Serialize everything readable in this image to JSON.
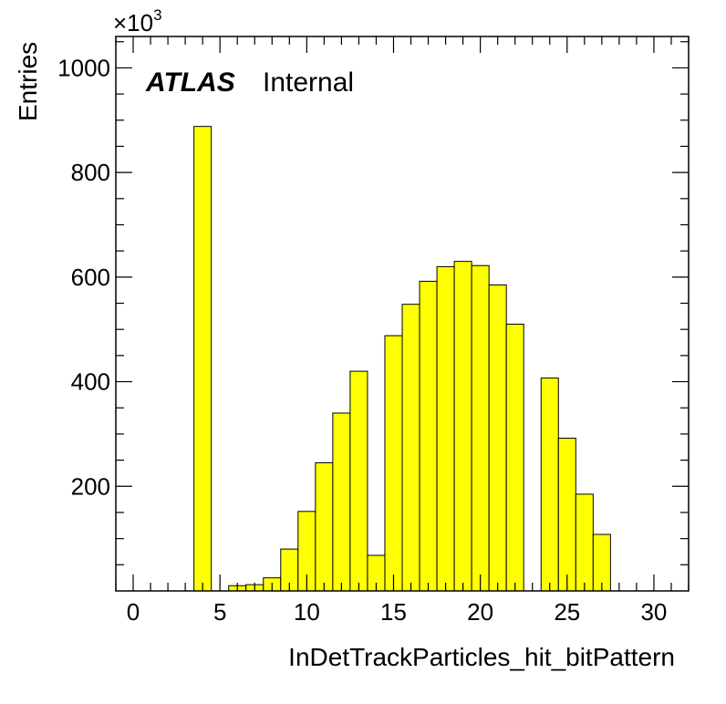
{
  "chart_data": {
    "type": "bar",
    "xlabel": "InDetTrackParticles_hit_bitPattern",
    "ylabel": "Entries",
    "y_multiplier": {
      "base": "×10",
      "exponent": "3"
    },
    "xlim": [
      -1,
      32
    ],
    "ylim": [
      0,
      1060
    ],
    "bin_width": 1,
    "x_ticks": [
      0,
      5,
      10,
      15,
      20,
      25,
      30
    ],
    "x_tick_labels": [
      "0",
      "5",
      "10",
      "15",
      "20",
      "25",
      "30"
    ],
    "y_ticks": [
      200,
      400,
      600,
      800,
      1000
    ],
    "y_tick_labels": [
      "200",
      "400",
      "600",
      "800",
      "1000"
    ],
    "bins": [
      {
        "x": 4,
        "value": 888
      },
      {
        "x": 5,
        "value": 0
      },
      {
        "x": 6,
        "value": 10
      },
      {
        "x": 7,
        "value": 12
      },
      {
        "x": 8,
        "value": 25
      },
      {
        "x": 9,
        "value": 80
      },
      {
        "x": 10,
        "value": 152
      },
      {
        "x": 11,
        "value": 245
      },
      {
        "x": 12,
        "value": 340
      },
      {
        "x": 13,
        "value": 420
      },
      {
        "x": 14,
        "value": 68
      },
      {
        "x": 15,
        "value": 488
      },
      {
        "x": 16,
        "value": 548
      },
      {
        "x": 17,
        "value": 592
      },
      {
        "x": 18,
        "value": 620
      },
      {
        "x": 19,
        "value": 630
      },
      {
        "x": 20,
        "value": 622
      },
      {
        "x": 21,
        "value": 585
      },
      {
        "x": 22,
        "value": 510
      },
      {
        "x": 23,
        "value": 0
      },
      {
        "x": 24,
        "value": 407
      },
      {
        "x": 25,
        "value": 292
      },
      {
        "x": 26,
        "value": 185
      },
      {
        "x": 27,
        "value": 108
      }
    ],
    "fill_color": "#ffff00",
    "line_color": "#000000"
  },
  "labels": {
    "atlas": "ATLAS",
    "status": "Internal"
  }
}
